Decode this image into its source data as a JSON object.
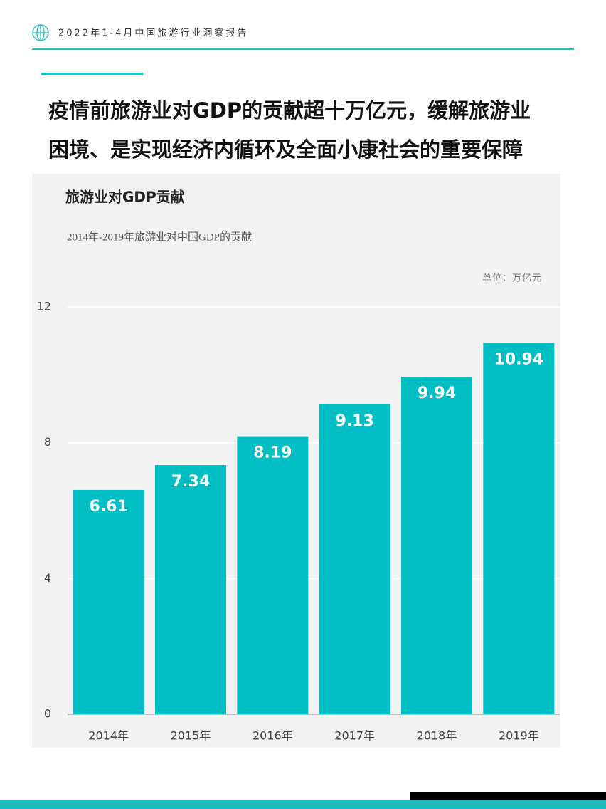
{
  "header": {
    "title": "2022年1-4月中国旅游行业洞察报告"
  },
  "headline": [
    "疫情前旅游业对GDP的贡献超十万亿元，缓解旅游业",
    "困境、是实现经济内循环及全面小康社会的重要保障"
  ],
  "chart_data": {
    "type": "bar",
    "title": "旅游业对GDP贡献",
    "subtitle": "2014年-2019年旅游业对中国GDP的贡献",
    "unit": "单位：万亿元",
    "categories": [
      "2014年",
      "2015年",
      "2016年",
      "2017年",
      "2018年",
      "2019年"
    ],
    "values": [
      6.61,
      7.34,
      8.19,
      9.13,
      9.94,
      10.94
    ],
    "color": "#00bec4",
    "ylim": [
      0,
      12
    ],
    "yticks": [
      0,
      4,
      8,
      12
    ],
    "grid": true
  }
}
